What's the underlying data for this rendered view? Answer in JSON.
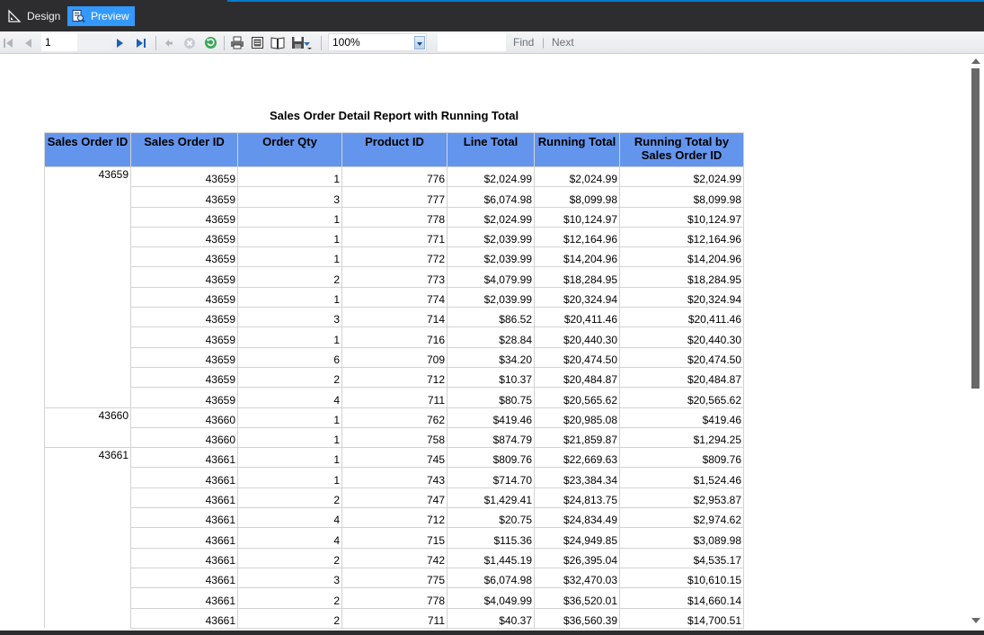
{
  "tabs": {
    "design_label": "Design",
    "preview_label": "Preview"
  },
  "toolbar": {
    "page_number": "1",
    "zoom": "100%",
    "find_label": "Find",
    "find_separator": "|",
    "next_label": "Next"
  },
  "icons": {
    "first_page": "first-page-icon",
    "prev_page": "previous-page-icon",
    "next_page": "next-page-icon",
    "last_page": "last-page-icon",
    "back": "back-icon",
    "stop": "stop-icon",
    "refresh": "refresh-icon",
    "print": "print-icon",
    "print_layout": "print-layout-icon",
    "page_setup": "page-setup-icon",
    "export": "export-icon"
  },
  "report": {
    "title": "Sales Order Detail Report with Running Total",
    "columns": [
      "Sales Order ID",
      "Sales Order ID",
      "Order Qty",
      "Product ID",
      "Line Total",
      "Running Total",
      "Running Total by Sales Order ID"
    ],
    "groups": [
      {
        "group_id": "43659",
        "rows": [
          [
            "43659",
            "1",
            "776",
            "$2,024.99",
            "$2,024.99",
            "$2,024.99"
          ],
          [
            "43659",
            "3",
            "777",
            "$6,074.98",
            "$8,099.98",
            "$8,099.98"
          ],
          [
            "43659",
            "1",
            "778",
            "$2,024.99",
            "$10,124.97",
            "$10,124.97"
          ],
          [
            "43659",
            "1",
            "771",
            "$2,039.99",
            "$12,164.96",
            "$12,164.96"
          ],
          [
            "43659",
            "1",
            "772",
            "$2,039.99",
            "$14,204.96",
            "$14,204.96"
          ],
          [
            "43659",
            "2",
            "773",
            "$4,079.99",
            "$18,284.95",
            "$18,284.95"
          ],
          [
            "43659",
            "1",
            "774",
            "$2,039.99",
            "$20,324.94",
            "$20,324.94"
          ],
          [
            "43659",
            "3",
            "714",
            "$86.52",
            "$20,411.46",
            "$20,411.46"
          ],
          [
            "43659",
            "1",
            "716",
            "$28.84",
            "$20,440.30",
            "$20,440.30"
          ],
          [
            "43659",
            "6",
            "709",
            "$34.20",
            "$20,474.50",
            "$20,474.50"
          ],
          [
            "43659",
            "2",
            "712",
            "$10.37",
            "$20,484.87",
            "$20,484.87"
          ],
          [
            "43659",
            "4",
            "711",
            "$80.75",
            "$20,565.62",
            "$20,565.62"
          ]
        ]
      },
      {
        "group_id": "43660",
        "rows": [
          [
            "43660",
            "1",
            "762",
            "$419.46",
            "$20,985.08",
            "$419.46"
          ],
          [
            "43660",
            "1",
            "758",
            "$874.79",
            "$21,859.87",
            "$1,294.25"
          ]
        ]
      },
      {
        "group_id": "43661",
        "rows": [
          [
            "43661",
            "1",
            "745",
            "$809.76",
            "$22,669.63",
            "$809.76"
          ],
          [
            "43661",
            "1",
            "743",
            "$714.70",
            "$23,384.34",
            "$1,524.46"
          ],
          [
            "43661",
            "2",
            "747",
            "$1,429.41",
            "$24,813.75",
            "$2,953.87"
          ],
          [
            "43661",
            "4",
            "712",
            "$20.75",
            "$24,834.49",
            "$2,974.62"
          ],
          [
            "43661",
            "4",
            "715",
            "$115.36",
            "$24,949.85",
            "$3,089.98"
          ],
          [
            "43661",
            "2",
            "742",
            "$1,445.19",
            "$26,395.04",
            "$4,535.17"
          ],
          [
            "43661",
            "3",
            "775",
            "$6,074.98",
            "$32,470.03",
            "$10,610.15"
          ],
          [
            "43661",
            "2",
            "778",
            "$4,049.99",
            "$36,520.01",
            "$14,660.14"
          ],
          [
            "43661",
            "2",
            "711",
            "$40.37",
            "$36,560.39",
            "$14,700.51"
          ]
        ]
      }
    ]
  }
}
